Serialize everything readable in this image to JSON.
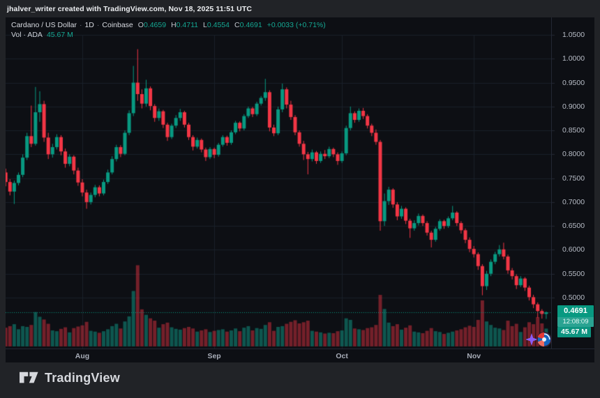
{
  "attribution": "jhalver_writer created with TradingView.com, Nov 18, 2025 11:51 UTC",
  "header": {
    "symbol": "Cardano / US Dollar",
    "sep": "·",
    "interval": "1D",
    "exchange": "Coinbase",
    "ohlc": {
      "open_label": "O",
      "open": "0.4659",
      "high_label": "H",
      "high": "0.4711",
      "low_label": "L",
      "low": "0.4554",
      "close_label": "C",
      "close": "0.4691",
      "change": "+0.0033 (+0.71%)"
    },
    "volume_label": "Vol · ADA",
    "volume_value": "45.67 M"
  },
  "price_axis": {
    "labels": [
      "1.0500",
      "1.0000",
      "0.9500",
      "0.9000",
      "0.8500",
      "0.8000",
      "0.7500",
      "0.7000",
      "0.6500",
      "0.6000",
      "0.5500",
      "0.5000"
    ],
    "badge": {
      "price": "0.4691",
      "time": "12:08:09",
      "volume": "45.67 M"
    }
  },
  "time_axis": {
    "labels": [
      {
        "label": "Aug",
        "day": 18
      },
      {
        "label": "Sep",
        "day": 49
      },
      {
        "label": "Oct",
        "day": 79
      },
      {
        "label": "Nov",
        "day": 110
      }
    ]
  },
  "footer": {
    "brand": "TradingView"
  },
  "colors": {
    "bg_outer": "#212327",
    "bg_chart": "#0d0f14",
    "up": "#089981",
    "down": "#f23645",
    "vol_up": "rgba(16,158,138,0.5)",
    "vol_down": "rgba(242,54,69,0.45)",
    "grid": "#1a202a",
    "axis_text": "#b7bcc6",
    "accent_text": "#15a893"
  },
  "chart_data": {
    "type": "candlestick",
    "title": "Cardano / US Dollar · 1D · Coinbase",
    "legend": [
      "O 0.4659",
      "H 0.4711",
      "L 0.4554",
      "C 0.4691",
      "+0.0033 (+0.71%)",
      "Vol · ADA 45.67 M"
    ],
    "interval": "1D",
    "last": {
      "open": 0.4659,
      "high": 0.4711,
      "low": 0.4554,
      "close": 0.4691,
      "volume_m": 45.67,
      "time": "12:08:09"
    },
    "current_price": 0.4691,
    "ylim": [
      0.45,
      1.05
    ],
    "price_ticks": [
      1.05,
      1.0,
      0.95,
      0.9,
      0.85,
      0.8,
      0.75,
      0.7,
      0.65,
      0.6,
      0.55,
      0.5
    ],
    "x_months": [
      "Aug",
      "Sep",
      "Oct",
      "Nov"
    ],
    "volume_unit": "M",
    "candles_format": [
      "open",
      "high",
      "low",
      "close",
      "volume_m"
    ],
    "candles": [
      [
        0.762,
        0.77,
        0.733,
        0.742,
        48
      ],
      [
        0.742,
        0.748,
        0.714,
        0.722,
        52
      ],
      [
        0.722,
        0.745,
        0.696,
        0.74,
        57
      ],
      [
        0.74,
        0.762,
        0.735,
        0.757,
        44
      ],
      [
        0.757,
        0.8,
        0.752,
        0.793,
        52
      ],
      [
        0.793,
        0.845,
        0.788,
        0.838,
        50
      ],
      [
        0.838,
        0.902,
        0.815,
        0.822,
        55
      ],
      [
        0.822,
        0.941,
        0.818,
        0.888,
        88
      ],
      [
        0.888,
        0.932,
        0.868,
        0.905,
        76
      ],
      [
        0.905,
        0.912,
        0.826,
        0.835,
        69
      ],
      [
        0.835,
        0.845,
        0.79,
        0.8,
        58
      ],
      [
        0.8,
        0.822,
        0.793,
        0.815,
        41
      ],
      [
        0.815,
        0.842,
        0.81,
        0.836,
        39
      ],
      [
        0.836,
        0.84,
        0.798,
        0.806,
        45
      ],
      [
        0.806,
        0.812,
        0.772,
        0.78,
        49
      ],
      [
        0.78,
        0.8,
        0.775,
        0.795,
        36
      ],
      [
        0.795,
        0.798,
        0.758,
        0.766,
        47
      ],
      [
        0.766,
        0.772,
        0.734,
        0.741,
        51
      ],
      [
        0.741,
        0.748,
        0.712,
        0.72,
        54
      ],
      [
        0.72,
        0.726,
        0.686,
        0.7,
        63
      ],
      [
        0.7,
        0.72,
        0.695,
        0.715,
        40
      ],
      [
        0.715,
        0.736,
        0.71,
        0.731,
        38
      ],
      [
        0.731,
        0.735,
        0.712,
        0.718,
        35
      ],
      [
        0.718,
        0.747,
        0.714,
        0.742,
        39
      ],
      [
        0.742,
        0.768,
        0.738,
        0.762,
        44
      ],
      [
        0.762,
        0.796,
        0.758,
        0.79,
        52
      ],
      [
        0.79,
        0.82,
        0.785,
        0.815,
        58
      ],
      [
        0.815,
        0.819,
        0.794,
        0.801,
        46
      ],
      [
        0.801,
        0.85,
        0.798,
        0.845,
        64
      ],
      [
        0.845,
        0.892,
        0.84,
        0.886,
        77
      ],
      [
        0.886,
        0.985,
        0.88,
        0.95,
        142
      ],
      [
        0.95,
        1.02,
        0.912,
        0.926,
        208
      ],
      [
        0.926,
        0.936,
        0.896,
        0.906,
        95
      ],
      [
        0.906,
        0.956,
        0.9,
        0.938,
        81
      ],
      [
        0.938,
        0.942,
        0.892,
        0.901,
        72
      ],
      [
        0.901,
        0.905,
        0.868,
        0.876,
        66
      ],
      [
        0.876,
        0.896,
        0.87,
        0.89,
        48
      ],
      [
        0.89,
        0.893,
        0.855,
        0.862,
        57
      ],
      [
        0.862,
        0.866,
        0.828,
        0.836,
        61
      ],
      [
        0.836,
        0.864,
        0.832,
        0.86,
        49
      ],
      [
        0.86,
        0.882,
        0.855,
        0.876,
        45
      ],
      [
        0.876,
        0.895,
        0.87,
        0.888,
        43
      ],
      [
        0.888,
        0.891,
        0.856,
        0.862,
        47
      ],
      [
        0.862,
        0.866,
        0.83,
        0.836,
        50
      ],
      [
        0.836,
        0.84,
        0.808,
        0.816,
        46
      ],
      [
        0.816,
        0.835,
        0.812,
        0.83,
        38
      ],
      [
        0.83,
        0.833,
        0.804,
        0.81,
        41
      ],
      [
        0.81,
        0.814,
        0.786,
        0.794,
        44
      ],
      [
        0.794,
        0.815,
        0.79,
        0.811,
        37
      ],
      [
        0.811,
        0.814,
        0.792,
        0.799,
        40
      ],
      [
        0.799,
        0.824,
        0.795,
        0.82,
        42
      ],
      [
        0.82,
        0.84,
        0.816,
        0.836,
        44
      ],
      [
        0.836,
        0.839,
        0.818,
        0.824,
        38
      ],
      [
        0.824,
        0.85,
        0.82,
        0.846,
        41
      ],
      [
        0.846,
        0.87,
        0.842,
        0.866,
        46
      ],
      [
        0.866,
        0.869,
        0.848,
        0.854,
        39
      ],
      [
        0.854,
        0.884,
        0.85,
        0.88,
        48
      ],
      [
        0.88,
        0.9,
        0.876,
        0.896,
        52
      ],
      [
        0.896,
        0.899,
        0.878,
        0.884,
        41
      ],
      [
        0.884,
        0.91,
        0.88,
        0.906,
        47
      ],
      [
        0.906,
        0.922,
        0.902,
        0.918,
        45
      ],
      [
        0.918,
        0.958,
        0.912,
        0.93,
        55
      ],
      [
        0.93,
        0.934,
        0.848,
        0.856,
        62
      ],
      [
        0.856,
        0.862,
        0.838,
        0.844,
        40
      ],
      [
        0.844,
        0.9,
        0.84,
        0.894,
        50
      ],
      [
        0.894,
        0.948,
        0.888,
        0.936,
        52
      ],
      [
        0.936,
        0.94,
        0.896,
        0.904,
        58
      ],
      [
        0.904,
        0.912,
        0.872,
        0.878,
        63
      ],
      [
        0.878,
        0.882,
        0.84,
        0.846,
        67
      ],
      [
        0.846,
        0.85,
        0.816,
        0.822,
        59
      ],
      [
        0.822,
        0.828,
        0.788,
        0.8,
        62
      ],
      [
        0.8,
        0.805,
        0.758,
        0.79,
        66
      ],
      [
        0.79,
        0.81,
        0.785,
        0.804,
        40
      ],
      [
        0.804,
        0.807,
        0.78,
        0.786,
        38
      ],
      [
        0.786,
        0.806,
        0.782,
        0.801,
        36
      ],
      [
        0.801,
        0.809,
        0.79,
        0.796,
        33
      ],
      [
        0.796,
        0.816,
        0.792,
        0.811,
        35
      ],
      [
        0.811,
        0.814,
        0.794,
        0.8,
        34
      ],
      [
        0.8,
        0.804,
        0.778,
        0.786,
        39
      ],
      [
        0.786,
        0.806,
        0.782,
        0.802,
        41
      ],
      [
        0.802,
        0.86,
        0.798,
        0.855,
        72
      ],
      [
        0.855,
        0.9,
        0.85,
        0.886,
        68
      ],
      [
        0.886,
        0.89,
        0.866,
        0.872,
        46
      ],
      [
        0.872,
        0.896,
        0.868,
        0.891,
        44
      ],
      [
        0.891,
        0.897,
        0.874,
        0.88,
        42
      ],
      [
        0.88,
        0.884,
        0.854,
        0.86,
        47
      ],
      [
        0.86,
        0.864,
        0.838,
        0.845,
        49
      ],
      [
        0.845,
        0.852,
        0.82,
        0.826,
        55
      ],
      [
        0.826,
        0.83,
        0.64,
        0.66,
        132
      ],
      [
        0.66,
        0.718,
        0.65,
        0.702,
        96
      ],
      [
        0.702,
        0.732,
        0.694,
        0.726,
        61
      ],
      [
        0.726,
        0.729,
        0.688,
        0.695,
        52
      ],
      [
        0.695,
        0.7,
        0.662,
        0.67,
        57
      ],
      [
        0.67,
        0.692,
        0.665,
        0.686,
        43
      ],
      [
        0.686,
        0.689,
        0.654,
        0.661,
        48
      ],
      [
        0.661,
        0.665,
        0.625,
        0.645,
        54
      ],
      [
        0.645,
        0.662,
        0.64,
        0.656,
        38
      ],
      [
        0.656,
        0.676,
        0.651,
        0.671,
        36
      ],
      [
        0.671,
        0.674,
        0.65,
        0.656,
        34
      ],
      [
        0.656,
        0.66,
        0.63,
        0.636,
        40
      ],
      [
        0.636,
        0.64,
        0.605,
        0.621,
        47
      ],
      [
        0.621,
        0.648,
        0.617,
        0.644,
        39
      ],
      [
        0.644,
        0.664,
        0.64,
        0.66,
        37
      ],
      [
        0.66,
        0.663,
        0.644,
        0.65,
        32
      ],
      [
        0.65,
        0.67,
        0.646,
        0.666,
        35
      ],
      [
        0.666,
        0.692,
        0.662,
        0.678,
        38
      ],
      [
        0.678,
        0.681,
        0.65,
        0.656,
        41
      ],
      [
        0.656,
        0.66,
        0.634,
        0.641,
        44
      ],
      [
        0.641,
        0.645,
        0.614,
        0.621,
        49
      ],
      [
        0.621,
        0.626,
        0.595,
        0.602,
        53
      ],
      [
        0.602,
        0.608,
        0.584,
        0.591,
        50
      ],
      [
        0.591,
        0.595,
        0.558,
        0.566,
        68
      ],
      [
        0.566,
        0.57,
        0.505,
        0.524,
        118
      ],
      [
        0.524,
        0.556,
        0.516,
        0.55,
        64
      ],
      [
        0.55,
        0.58,
        0.545,
        0.575,
        55
      ],
      [
        0.575,
        0.596,
        0.57,
        0.591,
        48
      ],
      [
        0.591,
        0.61,
        0.586,
        0.601,
        46
      ],
      [
        0.601,
        0.615,
        0.58,
        0.586,
        42
      ],
      [
        0.586,
        0.59,
        0.55,
        0.557,
        66
      ],
      [
        0.557,
        0.562,
        0.538,
        0.545,
        52
      ],
      [
        0.545,
        0.549,
        0.518,
        0.526,
        58
      ],
      [
        0.526,
        0.545,
        0.522,
        0.54,
        37
      ],
      [
        0.54,
        0.543,
        0.514,
        0.521,
        49
      ],
      [
        0.521,
        0.525,
        0.494,
        0.501,
        62
      ],
      [
        0.501,
        0.506,
        0.478,
        0.486,
        57
      ],
      [
        0.486,
        0.49,
        0.458,
        0.472,
        75
      ],
      [
        0.472,
        0.476,
        0.456,
        0.466,
        59
      ],
      [
        0.4659,
        0.4711,
        0.4554,
        0.4691,
        45.67
      ]
    ]
  }
}
